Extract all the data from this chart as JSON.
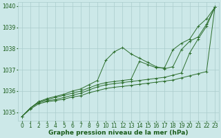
{
  "xlabel": "Graphe pression niveau de la mer (hPa)",
  "xlim": [
    -0.5,
    23.5
  ],
  "ylim": [
    1034.6,
    1040.2
  ],
  "yticks": [
    1035,
    1036,
    1037,
    1038,
    1039,
    1040
  ],
  "xticks": [
    0,
    1,
    2,
    3,
    4,
    5,
    6,
    7,
    8,
    9,
    10,
    11,
    12,
    13,
    14,
    15,
    16,
    17,
    18,
    19,
    20,
    21,
    22,
    23
  ],
  "bg_color": "#cce8e8",
  "grid_color": "#aacccc",
  "line_color": "#2d6e2d",
  "lines": [
    [
      1034.8,
      1035.2,
      1035.5,
      1035.65,
      1035.75,
      1035.85,
      1036.0,
      1036.1,
      1036.3,
      1036.5,
      1037.45,
      1037.85,
      1038.05,
      1037.75,
      1037.55,
      1037.35,
      1037.15,
      1037.05,
      1037.15,
      1037.95,
      1038.35,
      1038.55,
      1039.15,
      1039.95
    ],
    [
      1034.8,
      1035.2,
      1035.5,
      1035.6,
      1035.7,
      1035.8,
      1035.9,
      1036.0,
      1036.15,
      1036.3,
      1036.4,
      1036.45,
      1036.5,
      1036.55,
      1037.4,
      1037.25,
      1037.1,
      1037.1,
      1037.95,
      1038.25,
      1038.45,
      1039.05,
      1039.4,
      1039.95
    ],
    [
      1034.8,
      1035.2,
      1035.45,
      1035.55,
      1035.6,
      1035.7,
      1035.8,
      1035.9,
      1036.05,
      1036.2,
      1036.3,
      1036.35,
      1036.4,
      1036.45,
      1036.5,
      1036.55,
      1036.6,
      1036.65,
      1036.75,
      1036.85,
      1037.8,
      1038.45,
      1039.05,
      1039.95
    ],
    [
      1034.8,
      1035.15,
      1035.4,
      1035.5,
      1035.55,
      1035.62,
      1035.72,
      1035.78,
      1035.92,
      1036.02,
      1036.12,
      1036.18,
      1036.22,
      1036.27,
      1036.32,
      1036.37,
      1036.42,
      1036.47,
      1036.52,
      1036.62,
      1036.72,
      1036.82,
      1036.92,
      1039.95
    ]
  ],
  "text_color": "#1a5c1a",
  "label_fontsize": 6.5,
  "tick_fontsize": 5.5,
  "marker": "+",
  "markersize": 2.5,
  "linewidth": 0.7
}
